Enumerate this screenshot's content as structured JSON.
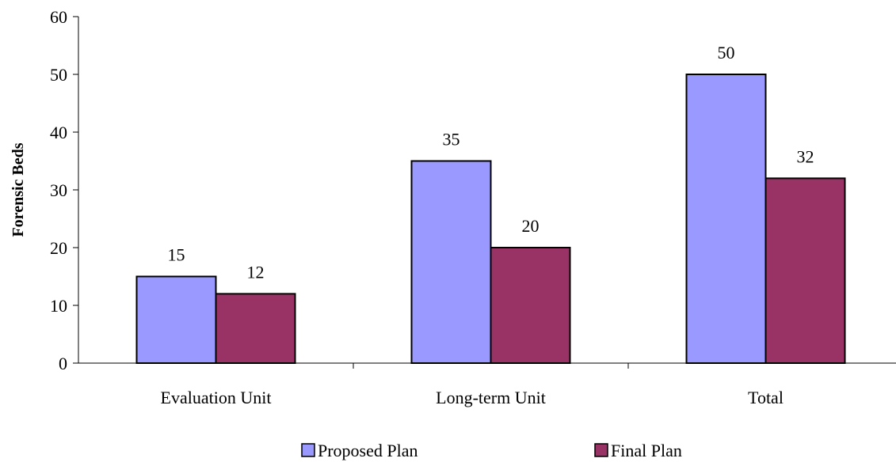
{
  "chart_data": {
    "type": "bar",
    "categories": [
      "Evaluation Unit",
      "Long-term Unit",
      "Total"
    ],
    "series": [
      {
        "name": "Proposed Plan",
        "values": [
          15,
          35,
          50
        ],
        "color": "#9999ff"
      },
      {
        "name": "Final Plan",
        "values": [
          12,
          20,
          32
        ],
        "color": "#993366"
      }
    ],
    "title": "",
    "xlabel": "",
    "ylabel": "Forensic Beds",
    "ylim": [
      0,
      60
    ],
    "yticks": [
      0,
      10,
      20,
      30,
      40,
      50,
      60
    ],
    "grid": false,
    "legend_position": "bottom",
    "data_labels": true
  }
}
